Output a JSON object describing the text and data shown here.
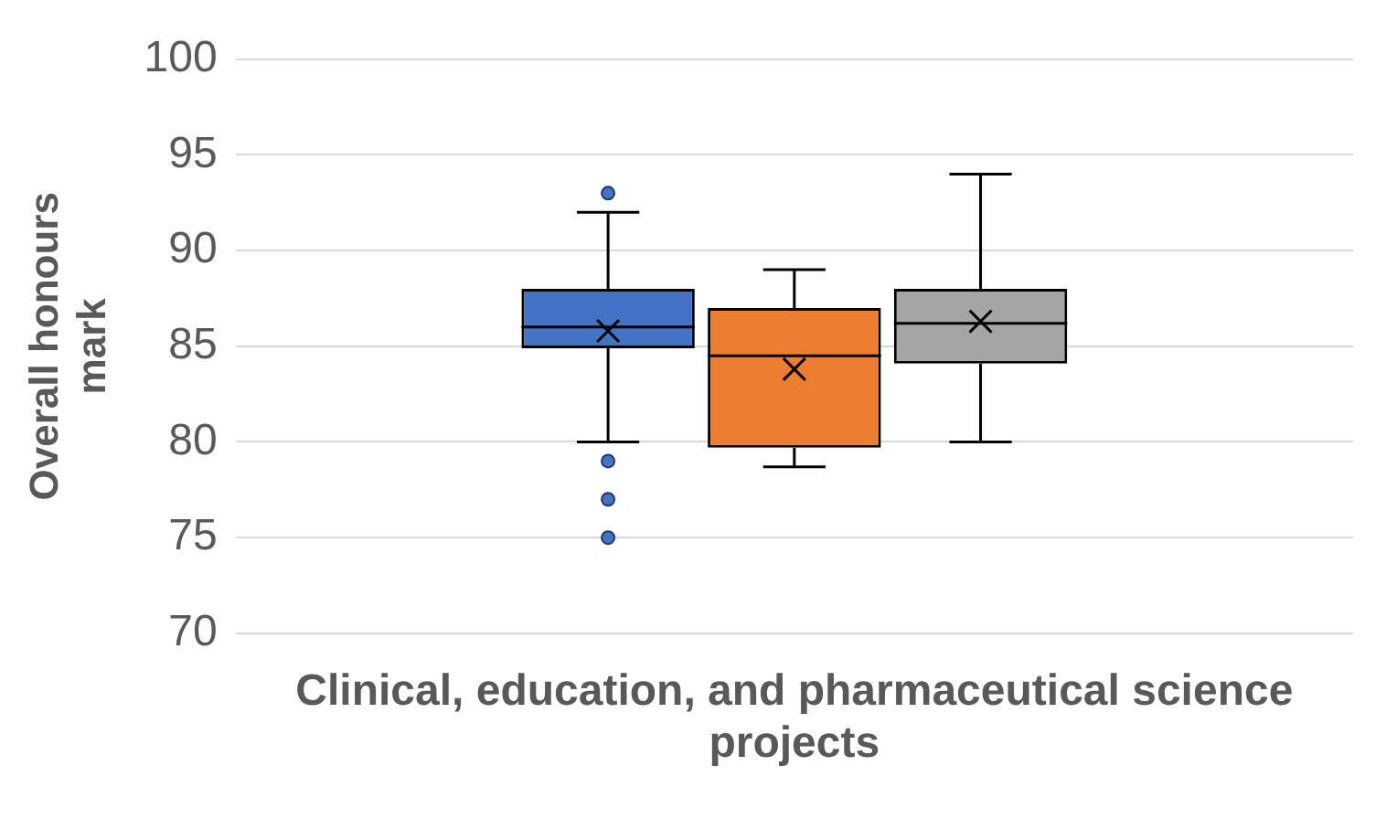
{
  "chart_data": {
    "type": "box",
    "ylabel": "Overall honours mark",
    "categories": [
      "Clinical, education, and pharmaceutical science projects"
    ],
    "ylim": [
      70,
      100
    ],
    "yticks": [
      70,
      75,
      80,
      85,
      90,
      95,
      100
    ],
    "grid": "y",
    "series": [
      {
        "color": "#4472c4",
        "boxes": [
          {
            "low": 80,
            "q1": 84.9,
            "median": 86,
            "q3": 88,
            "high": 92,
            "mean": 85.8,
            "outliers": [
              93,
              79,
              77,
              75
            ]
          }
        ]
      },
      {
        "color": "#ed7d31",
        "boxes": [
          {
            "low": 78.7,
            "q1": 79.7,
            "median": 84.5,
            "q3": 87,
            "high": 89,
            "mean": 83.8
          }
        ]
      },
      {
        "color": "#a5a5a5",
        "boxes": [
          {
            "low": 80,
            "q1": 84.1,
            "median": 86.2,
            "q3": 88,
            "high": 94,
            "mean": 86.3
          }
        ]
      }
    ]
  }
}
